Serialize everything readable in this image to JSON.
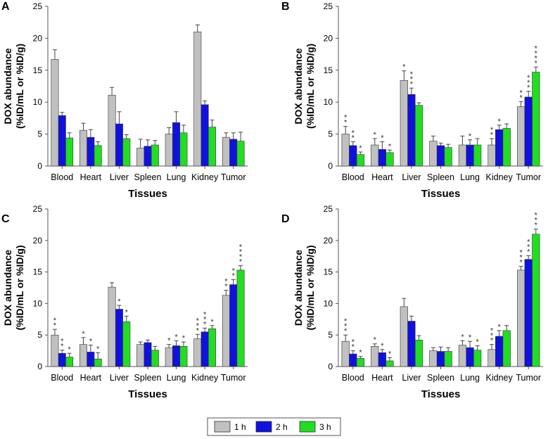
{
  "colors": {
    "1 h": "#c0c0c0",
    "2 h": "#1111dd",
    "3 h": "#22dd22",
    "axis": "#555555",
    "err": "#444444"
  },
  "legend": {
    "items": [
      "1 h",
      "2 h",
      "3 h"
    ]
  },
  "chart_data": [
    {
      "type": "bar",
      "panel": "A",
      "title": "",
      "xlabel": "Tissues",
      "ylabel_lines": [
        "DOX abundance",
        "(%ID/mL or %ID/g)"
      ],
      "ylim": [
        0,
        25
      ],
      "yticks": [
        0,
        5,
        10,
        15,
        20,
        25
      ],
      "categories": [
        "Blood",
        "Heart",
        "Liver",
        "Spleen",
        "Lung",
        "Kidney",
        "Tumor"
      ],
      "series": [
        {
          "name": "1 h",
          "values": [
            16.7,
            5.6,
            11.1,
            2.8,
            5.0,
            21.0,
            4.5
          ],
          "errors": [
            1.5,
            1.1,
            1.2,
            1.4,
            1.0,
            1.1,
            0.7
          ]
        },
        {
          "name": "2 h",
          "values": [
            7.9,
            4.5,
            6.6,
            3.1,
            6.8,
            9.6,
            4.2
          ],
          "errors": [
            0.5,
            1.2,
            1.9,
            1.0,
            1.7,
            0.6,
            1.0
          ]
        },
        {
          "name": "3 h",
          "values": [
            4.4,
            3.2,
            4.3,
            3.3,
            5.2,
            6.1,
            3.9
          ],
          "errors": [
            0.8,
            0.6,
            0.6,
            0.7,
            1.2,
            1.1,
            1.4
          ]
        }
      ],
      "stars": [
        [
          0,
          0,
          0,
          0,
          0,
          0,
          0
        ],
        [
          0,
          0,
          0,
          0,
          0,
          0,
          0
        ],
        [
          0,
          0,
          0,
          0,
          0,
          0,
          0
        ]
      ]
    },
    {
      "type": "bar",
      "panel": "B",
      "title": "",
      "xlabel": "Tissues",
      "ylabel_lines": [
        "DOX abundance",
        "(%ID/mL or %ID/g)"
      ],
      "ylim": [
        0,
        25
      ],
      "yticks": [
        0,
        5,
        10,
        15,
        20,
        25
      ],
      "categories": [
        "Blood",
        "Heart",
        "Liver",
        "Spleen",
        "Lung",
        "Kidney",
        "Tumor"
      ],
      "series": [
        {
          "name": "1 h",
          "values": [
            5.0,
            3.3,
            13.4,
            3.9,
            3.3,
            3.3,
            9.3
          ],
          "errors": [
            1.2,
            1.0,
            1.5,
            0.8,
            1.4,
            1.0,
            0.8
          ]
        },
        {
          "name": "2 h",
          "values": [
            3.2,
            2.6,
            11.2,
            3.2,
            3.3,
            5.7,
            10.8
          ],
          "errors": [
            0.6,
            1.2,
            1.0,
            0.4,
            0.8,
            0.7,
            0.9
          ]
        },
        {
          "name": "3 h",
          "values": [
            1.8,
            2.1,
            9.5,
            2.9,
            3.3,
            5.9,
            14.7
          ],
          "errors": [
            0.4,
            0.4,
            0.4,
            0.5,
            1.0,
            0.7,
            0.8
          ]
        }
      ],
      "stars": [
        [
          2,
          1,
          1,
          0,
          0,
          2,
          2
        ],
        [
          2,
          1,
          3,
          0,
          1,
          1,
          3
        ],
        [
          1,
          1,
          0,
          0,
          0,
          0,
          4
        ]
      ]
    },
    {
      "type": "bar",
      "panel": "C",
      "title": "",
      "xlabel": "Tissues",
      "ylabel_lines": [
        "DOX abundance",
        "(%ID/mL or %ID/g)"
      ],
      "ylim": [
        0,
        25
      ],
      "yticks": [
        0,
        5,
        10,
        15,
        20,
        25
      ],
      "categories": [
        "Blood",
        "Heart",
        "Liver",
        "Spleen",
        "Lung",
        "Kidney",
        "Tumor"
      ],
      "series": [
        {
          "name": "1 h",
          "values": [
            5.0,
            3.5,
            12.6,
            3.5,
            3.0,
            4.4,
            11.3
          ],
          "errors": [
            0.9,
            1.1,
            0.7,
            0.4,
            0.5,
            0.7,
            0.8
          ]
        },
        {
          "name": "2 h",
          "values": [
            2.1,
            2.3,
            9.1,
            3.8,
            3.3,
            5.5,
            13.0
          ],
          "errors": [
            0.5,
            1.1,
            0.6,
            0.4,
            0.8,
            0.6,
            0.8
          ]
        },
        {
          "name": "3 h",
          "values": [
            1.5,
            1.2,
            7.1,
            2.6,
            3.2,
            6.0,
            15.3
          ],
          "errors": [
            0.6,
            1.0,
            0.9,
            0.6,
            0.7,
            0.5,
            0.7
          ]
        }
      ],
      "stars": [
        [
          2,
          1,
          0,
          0,
          1,
          3,
          2
        ],
        [
          2,
          1,
          1,
          0,
          1,
          3,
          2
        ],
        [
          1,
          1,
          1,
          0,
          1,
          1,
          4
        ]
      ]
    },
    {
      "type": "bar",
      "panel": "D",
      "title": "",
      "xlabel": "Tissues",
      "ylabel_lines": [
        "DOX abundance",
        "(%ID/mL or %ID/g)"
      ],
      "ylim": [
        0,
        25
      ],
      "yticks": [
        0,
        5,
        10,
        15,
        20,
        25
      ],
      "categories": [
        "Blood",
        "Heart",
        "Liver",
        "Spleen",
        "Lung",
        "Kidney",
        "Tumor"
      ],
      "series": [
        {
          "name": "1 h",
          "values": [
            4.0,
            3.2,
            9.5,
            2.5,
            3.4,
            2.7,
            15.3
          ],
          "errors": [
            1.0,
            0.4,
            1.3,
            0.5,
            0.7,
            0.8,
            0.6
          ]
        },
        {
          "name": "2 h",
          "values": [
            2.0,
            2.2,
            7.2,
            2.4,
            3.0,
            4.8,
            17.0
          ],
          "errors": [
            0.5,
            0.5,
            0.8,
            0.7,
            1.0,
            0.9,
            0.6
          ]
        },
        {
          "name": "3 h",
          "values": [
            1.3,
            0.9,
            4.2,
            2.4,
            2.6,
            5.7,
            21.0
          ],
          "errors": [
            0.3,
            0.5,
            0.7,
            0.6,
            0.7,
            0.8,
            0.8
          ]
        }
      ],
      "stars": [
        [
          3,
          1,
          0,
          0,
          1,
          3,
          3
        ],
        [
          2,
          1,
          0,
          0,
          1,
          1,
          3
        ],
        [
          1,
          1,
          0,
          0,
          1,
          0,
          3
        ]
      ]
    }
  ]
}
